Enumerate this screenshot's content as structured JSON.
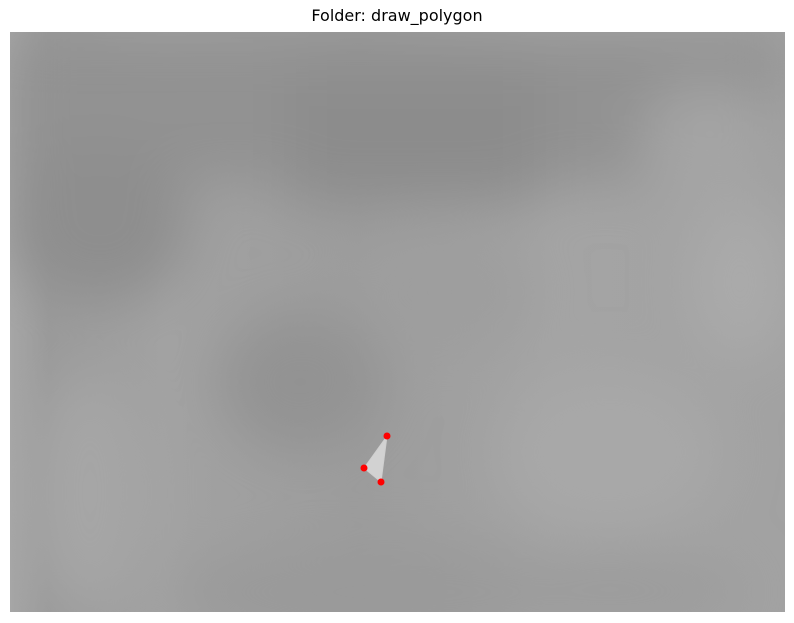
{
  "title": "Folder: draw_polygon",
  "image": {
    "background_color": "#a0a0a0",
    "polygon_fill": "#d0d0d0",
    "vertex_color": "#ff0000"
  }
}
